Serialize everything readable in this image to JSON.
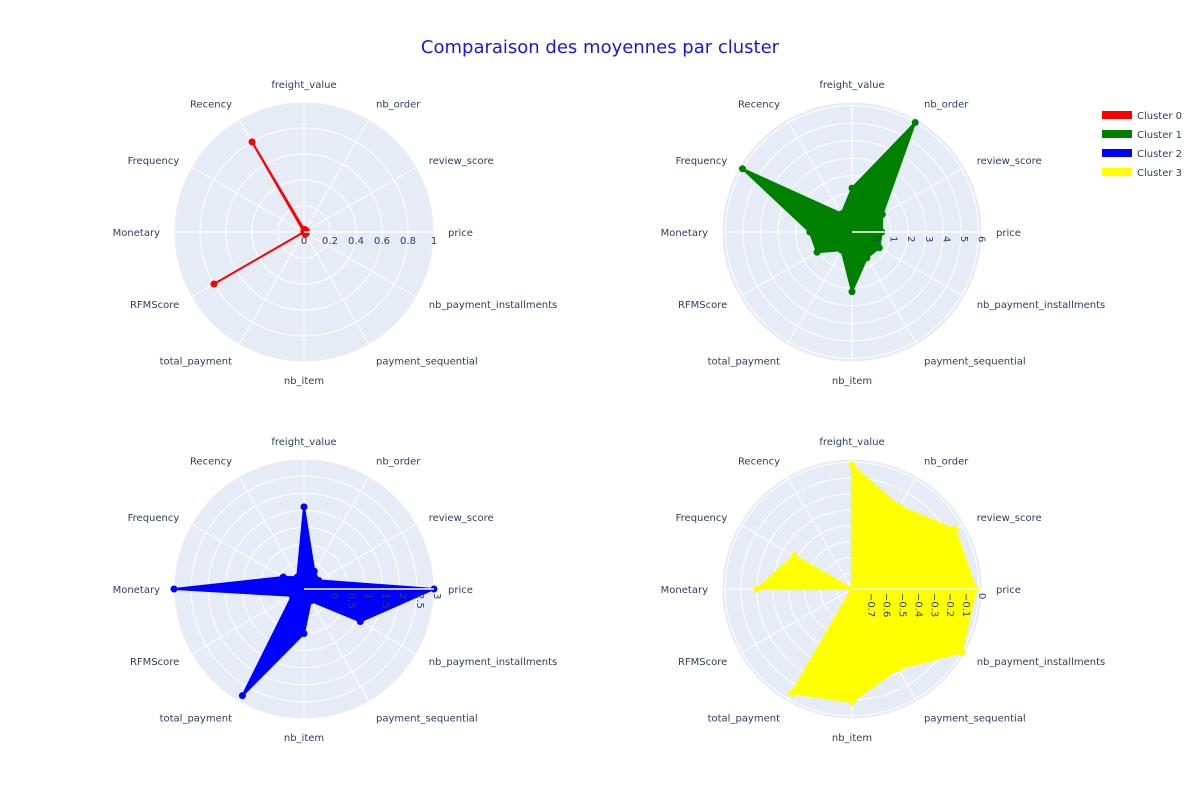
{
  "chart_data": {
    "type": "radar",
    "title": "Comparaison des moyennes par cluster",
    "axes": [
      "freight_value",
      "nb_order",
      "review_score",
      "price",
      "nb_payment_installments",
      "payment_sequential",
      "nb_item",
      "total_payment",
      "RFMScore",
      "Monetary",
      "Frequency",
      "Recency"
    ],
    "legend_position": "top-right",
    "grid": true,
    "background_color": "#e5ecf6",
    "series": [
      {
        "name": "Cluster 0",
        "color": "#ff0000",
        "fill": false,
        "radial_range": [
          0,
          1
        ],
        "radial_ticks": [
          "0",
          "0.2",
          "0.4",
          "0.6",
          "0.8",
          "1"
        ],
        "radial_tick_values": [
          0,
          0.2,
          0.4,
          0.6,
          0.8,
          1
        ],
        "values": [
          0.02,
          0.02,
          0.02,
          0.0,
          0.02,
          0.02,
          0.0,
          0.0,
          0.8,
          0.0,
          0.0,
          0.8
        ]
      },
      {
        "name": "Cluster 1",
        "color": "#008000",
        "fill": true,
        "radial_range": [
          -1.2,
          6.2
        ],
        "radial_ticks": [
          "0",
          "1",
          "2",
          "3",
          "4",
          "5",
          "6"
        ],
        "radial_tick_values": [
          0,
          1,
          2,
          3,
          4,
          5,
          6
        ],
        "values": [
          1.3,
          6.0,
          0.8,
          0.5,
          0.6,
          0.5,
          2.2,
          0.0,
          1.1,
          1.2,
          6.0,
          0.0
        ]
      },
      {
        "name": "Cluster 2",
        "color": "#0000ff",
        "fill": true,
        "radial_range": [
          -0.8,
          3.0
        ],
        "radial_ticks": [
          "0",
          "0.5",
          "1",
          "1.5",
          "2",
          "2.5",
          "3"
        ],
        "radial_tick_values": [
          0,
          0.5,
          1,
          1.5,
          2,
          2.5,
          3
        ],
        "values": [
          1.6,
          -0.2,
          -0.3,
          3.0,
          1.1,
          -0.4,
          0.5,
          2.8,
          -0.4,
          3.0,
          -0.1,
          -0.4
        ]
      },
      {
        "name": "Cluster 3",
        "color": "#ffff00",
        "fill": true,
        "radial_range": [
          -0.8,
          0.02
        ],
        "radial_ticks": [
          "0",
          "−0.1",
          "−0.2",
          "−0.3",
          "−0.4",
          "−0.5",
          "−0.6",
          "−0.7"
        ],
        "radial_tick_values": [
          0,
          -0.1,
          -0.2,
          -0.3,
          -0.4,
          -0.5,
          -0.6,
          -0.7
        ],
        "values": [
          -0.02,
          -0.2,
          -0.05,
          -0.02,
          0.0,
          -0.22,
          -0.09,
          -0.04,
          -0.8,
          -0.2,
          -0.38,
          -0.8
        ]
      }
    ]
  }
}
